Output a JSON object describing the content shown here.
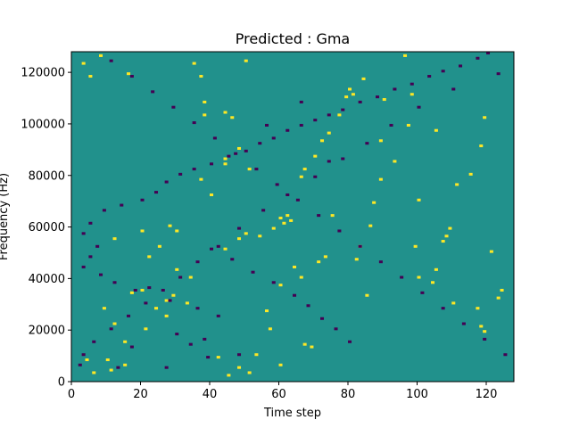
{
  "chart_data": {
    "type": "heatmap",
    "title": "Predicted : Gma",
    "xlabel": "Time step",
    "ylabel": "Frequency (Hz)",
    "xlim": [
      0,
      128
    ],
    "ylim": [
      0,
      128000
    ],
    "x_ticks": [
      0,
      20,
      40,
      60,
      80,
      100,
      120
    ],
    "y_ticks": [
      0,
      20000,
      40000,
      60000,
      80000,
      100000,
      120000
    ],
    "grid": false,
    "legend": "none",
    "rows": 128,
    "cols": 128,
    "background_value": 0,
    "colors": {
      "background": "#21918c",
      "high": "#fde725",
      "low": "#440154"
    },
    "high_cells": [
      [
        15,
        6
      ],
      [
        27,
        31
      ],
      [
        30,
        43
      ],
      [
        34,
        40
      ],
      [
        44,
        51
      ],
      [
        20,
        35
      ],
      [
        17,
        34
      ],
      [
        29,
        33
      ],
      [
        33,
        30
      ],
      [
        27,
        25
      ],
      [
        21,
        20
      ],
      [
        15,
        15
      ],
      [
        12,
        22
      ],
      [
        10,
        8
      ],
      [
        11,
        4
      ],
      [
        6,
        3
      ],
      [
        4,
        8
      ],
      [
        9,
        28
      ],
      [
        22,
        48
      ],
      [
        24,
        28
      ],
      [
        44,
        84
      ],
      [
        51,
        82
      ],
      [
        60,
        63
      ],
      [
        61,
        61
      ],
      [
        62,
        64
      ],
      [
        63,
        62
      ],
      [
        58,
        59
      ],
      [
        54,
        56
      ],
      [
        48,
        55
      ],
      [
        50,
        57
      ],
      [
        40,
        72
      ],
      [
        37,
        78
      ],
      [
        44,
        86
      ],
      [
        48,
        90
      ],
      [
        46,
        102
      ],
      [
        38,
        103
      ],
      [
        38,
        108
      ],
      [
        37,
        118
      ],
      [
        35,
        123
      ],
      [
        44,
        104
      ],
      [
        50,
        124
      ],
      [
        82,
        47
      ],
      [
        85,
        33
      ],
      [
        87,
        69
      ],
      [
        89,
        93
      ],
      [
        90,
        109
      ],
      [
        96,
        126
      ],
      [
        97,
        99
      ],
      [
        98,
        111
      ],
      [
        99,
        52
      ],
      [
        100,
        40
      ],
      [
        104,
        38
      ],
      [
        105,
        97
      ],
      [
        107,
        54
      ],
      [
        108,
        56
      ],
      [
        109,
        59
      ],
      [
        110,
        30
      ],
      [
        117,
        28
      ],
      [
        118,
        21
      ],
      [
        119,
        19
      ],
      [
        121,
        50
      ],
      [
        123,
        32
      ],
      [
        124,
        35
      ],
      [
        119,
        102
      ],
      [
        118,
        91
      ],
      [
        115,
        80
      ],
      [
        111,
        76
      ],
      [
        105,
        43
      ],
      [
        100,
        70
      ],
      [
        93,
        85
      ],
      [
        89,
        78
      ],
      [
        86,
        60
      ],
      [
        83,
        52
      ],
      [
        75,
        64
      ],
      [
        73,
        48
      ],
      [
        71,
        46
      ],
      [
        66,
        40
      ],
      [
        64,
        44
      ],
      [
        60,
        37
      ],
      [
        67,
        14
      ],
      [
        69,
        13
      ],
      [
        60,
        6
      ],
      [
        53,
        10
      ],
      [
        48,
        5
      ],
      [
        45,
        2
      ],
      [
        42,
        9
      ],
      [
        51,
        3
      ],
      [
        56,
        27
      ],
      [
        57,
        20
      ],
      [
        66,
        79
      ],
      [
        67,
        82
      ],
      [
        70,
        87
      ],
      [
        72,
        93
      ],
      [
        74,
        96
      ],
      [
        77,
        103
      ],
      [
        79,
        110
      ],
      [
        80,
        113
      ],
      [
        81,
        111
      ],
      [
        84,
        117
      ],
      [
        12,
        55
      ],
      [
        20,
        58
      ],
      [
        25,
        52
      ],
      [
        28,
        60
      ],
      [
        30,
        58
      ],
      [
        5,
        118
      ],
      [
        8,
        126
      ],
      [
        3,
        123
      ],
      [
        16,
        119
      ]
    ],
    "low_cells": [
      [
        2,
        6
      ],
      [
        13,
        5
      ],
      [
        27,
        5
      ],
      [
        39,
        9
      ],
      [
        48,
        10
      ],
      [
        17,
        13
      ],
      [
        34,
        14
      ],
      [
        38,
        16
      ],
      [
        30,
        18
      ],
      [
        42,
        25
      ],
      [
        36,
        28
      ],
      [
        28,
        31
      ],
      [
        22,
        36
      ],
      [
        18,
        35
      ],
      [
        12,
        38
      ],
      [
        8,
        41
      ],
      [
        3,
        44
      ],
      [
        5,
        48
      ],
      [
        7,
        52
      ],
      [
        3,
        57
      ],
      [
        5,
        61
      ],
      [
        9,
        66
      ],
      [
        14,
        68
      ],
      [
        20,
        70
      ],
      [
        24,
        73
      ],
      [
        27,
        77
      ],
      [
        31,
        80
      ],
      [
        35,
        82
      ],
      [
        40,
        84
      ],
      [
        45,
        87
      ],
      [
        50,
        89
      ],
      [
        54,
        92
      ],
      [
        58,
        94
      ],
      [
        62,
        97
      ],
      [
        66,
        99
      ],
      [
        70,
        101
      ],
      [
        74,
        103
      ],
      [
        78,
        105
      ],
      [
        83,
        108
      ],
      [
        88,
        110
      ],
      [
        93,
        113
      ],
      [
        98,
        115
      ],
      [
        103,
        118
      ],
      [
        107,
        120
      ],
      [
        112,
        122
      ],
      [
        117,
        125
      ],
      [
        120,
        127
      ],
      [
        123,
        119
      ],
      [
        110,
        113
      ],
      [
        100,
        106
      ],
      [
        92,
        99
      ],
      [
        85,
        92
      ],
      [
        78,
        86
      ],
      [
        70,
        79
      ],
      [
        62,
        72
      ],
      [
        55,
        66
      ],
      [
        48,
        59
      ],
      [
        42,
        52
      ],
      [
        36,
        46
      ],
      [
        31,
        40
      ],
      [
        26,
        35
      ],
      [
        21,
        30
      ],
      [
        16,
        25
      ],
      [
        11,
        20
      ],
      [
        6,
        15
      ],
      [
        3,
        10
      ],
      [
        125,
        10
      ],
      [
        119,
        16
      ],
      [
        113,
        22
      ],
      [
        107,
        28
      ],
      [
        101,
        34
      ],
      [
        95,
        40
      ],
      [
        89,
        46
      ],
      [
        83,
        52
      ],
      [
        77,
        58
      ],
      [
        71,
        64
      ],
      [
        65,
        70
      ],
      [
        59,
        76
      ],
      [
        53,
        82
      ],
      [
        47,
        88
      ],
      [
        41,
        94
      ],
      [
        35,
        100
      ],
      [
        29,
        106
      ],
      [
        23,
        112
      ],
      [
        17,
        118
      ],
      [
        11,
        124
      ],
      [
        80,
        15
      ],
      [
        76,
        20
      ],
      [
        72,
        24
      ],
      [
        68,
        29
      ],
      [
        64,
        33
      ],
      [
        58,
        38
      ],
      [
        52,
        42
      ],
      [
        46,
        47
      ],
      [
        40,
        51
      ],
      [
        56,
        99
      ],
      [
        66,
        108
      ],
      [
        74,
        85
      ]
    ]
  }
}
